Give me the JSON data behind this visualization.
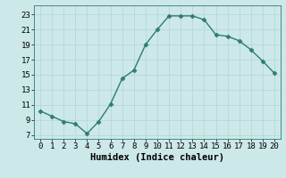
{
  "x": [
    0,
    1,
    2,
    3,
    4,
    5,
    6,
    7,
    8,
    9,
    10,
    11,
    12,
    13,
    14,
    15,
    16,
    17,
    18,
    19,
    20
  ],
  "y": [
    10.2,
    9.5,
    8.8,
    8.5,
    7.2,
    8.8,
    11.1,
    14.5,
    15.6,
    19.0,
    21.0,
    22.8,
    22.8,
    22.8,
    22.3,
    20.3,
    20.1,
    19.5,
    18.3,
    16.8,
    15.2
  ],
  "line_color": "#2e7d6e",
  "marker": "D",
  "marker_size": 2.5,
  "bg_color": "#cce8e8",
  "grid_major_color": "#b8d8d8",
  "grid_minor_color": "#d8ecec",
  "xlabel": "Humidex (Indice chaleur)",
  "xlim": [
    -0.5,
    20.5
  ],
  "ylim": [
    6.5,
    24.2
  ],
  "xticks": [
    0,
    1,
    2,
    3,
    4,
    5,
    6,
    7,
    8,
    9,
    10,
    11,
    12,
    13,
    14,
    15,
    16,
    17,
    18,
    19,
    20
  ],
  "yticks": [
    7,
    9,
    11,
    13,
    15,
    17,
    19,
    21,
    23
  ],
  "xlabel_fontsize": 7.5,
  "tick_fontsize": 6.5,
  "linewidth": 1.0
}
